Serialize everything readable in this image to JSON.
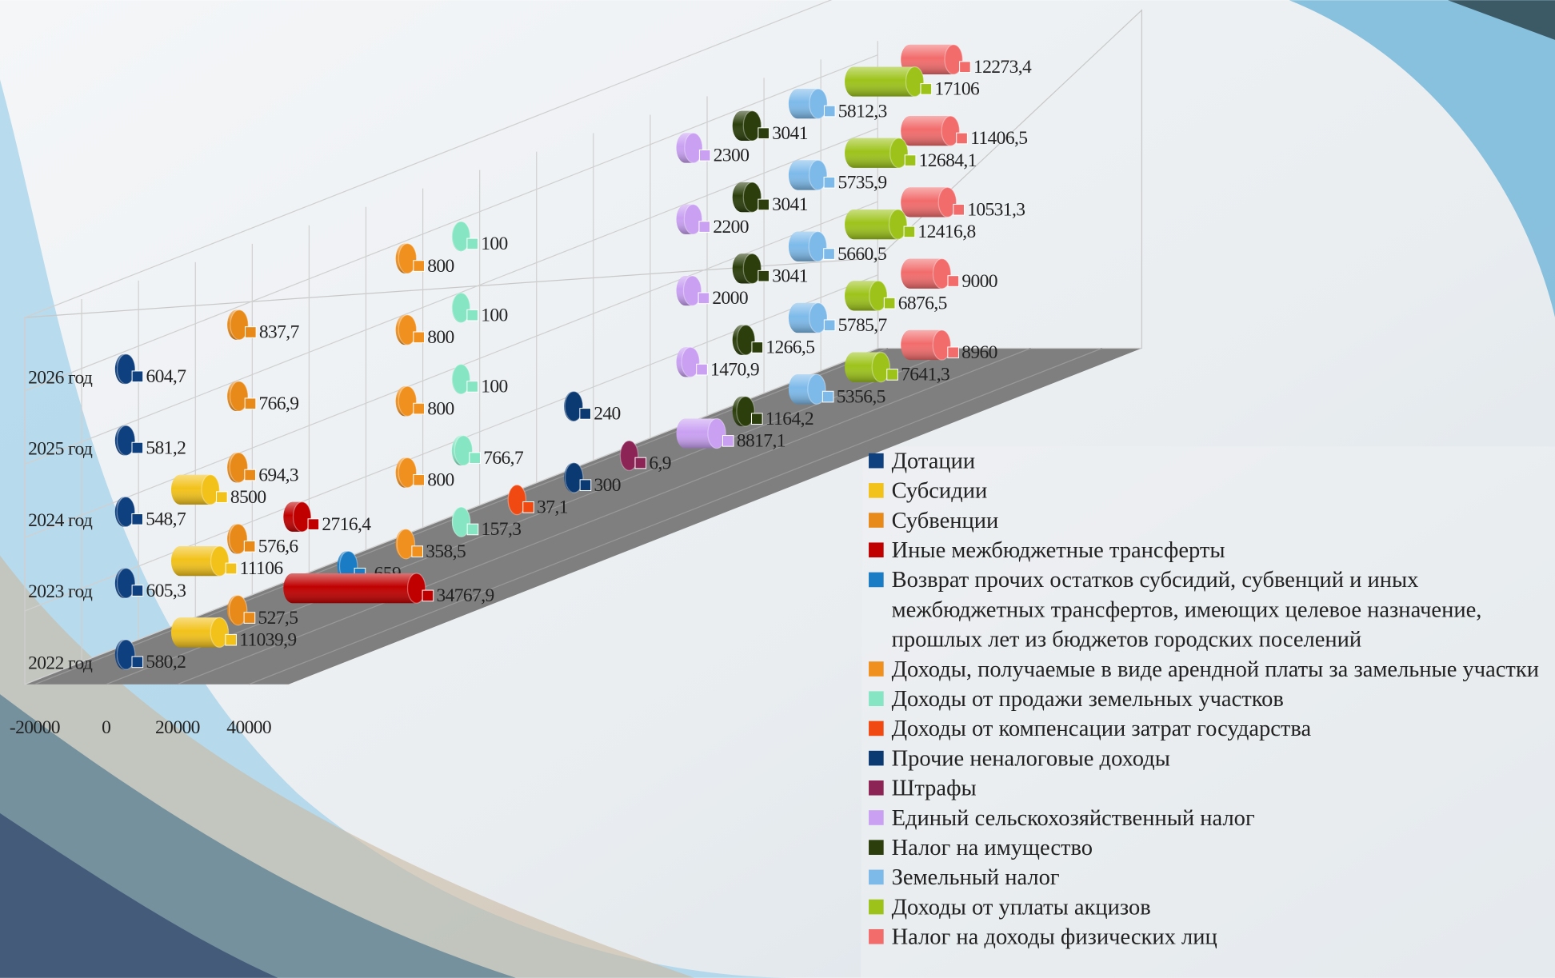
{
  "chart_data": {
    "type": "bar3d",
    "categories": [
      "2022 год",
      "2023 год",
      "2024 год",
      "2025 год",
      "2026 год"
    ],
    "xlim": [
      -20000,
      40000
    ],
    "xticks": [
      -20000,
      0,
      20000,
      40000
    ],
    "legend": "right",
    "series": [
      {
        "name": "Дотации",
        "color": "#0e3f7e",
        "values": [
          580.2,
          605.3,
          548.7,
          581.2,
          604.7
        ],
        "value_labels": [
          "580,2",
          "605,3",
          "548,7",
          "581,2",
          "604,7"
        ]
      },
      {
        "name": "Субсидии",
        "color": "#f2c21b",
        "values": [
          11039.9,
          11106,
          8500,
          null,
          null
        ],
        "value_labels": [
          "11039,9",
          "11106",
          "8500",
          null,
          null
        ]
      },
      {
        "name": "Субвенции",
        "color": "#e88a1a",
        "values": [
          527.5,
          576.6,
          694.3,
          766.9,
          837.7
        ],
        "value_labels": [
          "527,5",
          "576,6",
          "694,3",
          "766,9",
          "837,7"
        ]
      },
      {
        "name": "Иные межбюджетные трансферты",
        "color": "#c00000",
        "values": [
          34767.9,
          2716.4,
          null,
          null,
          null
        ],
        "value_labels": [
          "34767,9",
          "2716,4",
          null,
          null,
          null
        ]
      },
      {
        "name": "Возврат прочих остатков субсидий, субвенций и иных межбюджетных трансфертов, имеющих целевое назначение, прошлых лет из бюджетов городских поселений",
        "color": "#1a7cc4",
        "values": [
          -659,
          null,
          null,
          null,
          null
        ],
        "value_labels": [
          "-659",
          null,
          null,
          null,
          null
        ]
      },
      {
        "name": "Доходы, получаемые в виде арендной платы за замельные участки",
        "color": "#f0901e",
        "values": [
          358.5,
          800,
          800,
          800,
          800
        ],
        "value_labels": [
          "358,5",
          "800",
          "800",
          "800",
          "800"
        ]
      },
      {
        "name": "Доходы от продажи земельных участков",
        "color": "#86e6c4",
        "values": [
          157.3,
          766.7,
          100,
          100,
          100
        ],
        "value_labels": [
          "157,3",
          "766,7",
          "100",
          "100",
          "100"
        ]
      },
      {
        "name": "Доходы от компенсации затрат государства",
        "color": "#f04a12",
        "values": [
          37.1,
          null,
          null,
          null,
          null
        ],
        "value_labels": [
          "37,1",
          null,
          null,
          null,
          null
        ]
      },
      {
        "name": "Прочие неналоговые доходы",
        "color": "#0b3a73",
        "values": [
          300,
          240,
          null,
          null,
          null
        ],
        "value_labels": [
          "300",
          "240",
          null,
          null,
          null
        ]
      },
      {
        "name": "Штрафы",
        "color": "#8c2456",
        "values": [
          6.9,
          null,
          null,
          null,
          null
        ],
        "value_labels": [
          "6,9",
          null,
          null,
          null,
          null
        ]
      },
      {
        "name": "Единый сельскохозяйственный налог",
        "color": "#c9a0f2",
        "values": [
          8817.1,
          1470.9,
          2000,
          2200,
          2300
        ],
        "value_labels": [
          "8817,1",
          "1470,9",
          "2000",
          "2200",
          "2300"
        ]
      },
      {
        "name": "Налог на имущество",
        "color": "#2b3e0b",
        "values": [
          1164.2,
          1266.5,
          3041,
          3041,
          3041
        ],
        "value_labels": [
          "1164,2",
          "1266,5",
          "3041",
          "3041",
          "3041"
        ]
      },
      {
        "name": "Земельный налог",
        "color": "#7dbaea",
        "values": [
          5356.5,
          5785.7,
          5660.5,
          5735.9,
          5812.3
        ],
        "value_labels": [
          "5356,5",
          "5785,7",
          "5660,5",
          "5735,9",
          "5812,3"
        ]
      },
      {
        "name": "Доходы от уплаты акцизов",
        "color": "#9dc31b",
        "values": [
          7641.3,
          6876.5,
          12416.8,
          12684.1,
          17106
        ],
        "value_labels": [
          "7641,3",
          "6876,5",
          "12416,8",
          "12684,1",
          "17106"
        ]
      },
      {
        "name": "Налог на доходы физических лиц",
        "color": "#f26c6c",
        "values": [
          8960,
          9000,
          10531.3,
          11406.5,
          12273.4
        ],
        "value_labels": [
          "8960",
          "9000",
          "10531,3",
          "11406,5",
          "12273,4"
        ]
      }
    ]
  }
}
